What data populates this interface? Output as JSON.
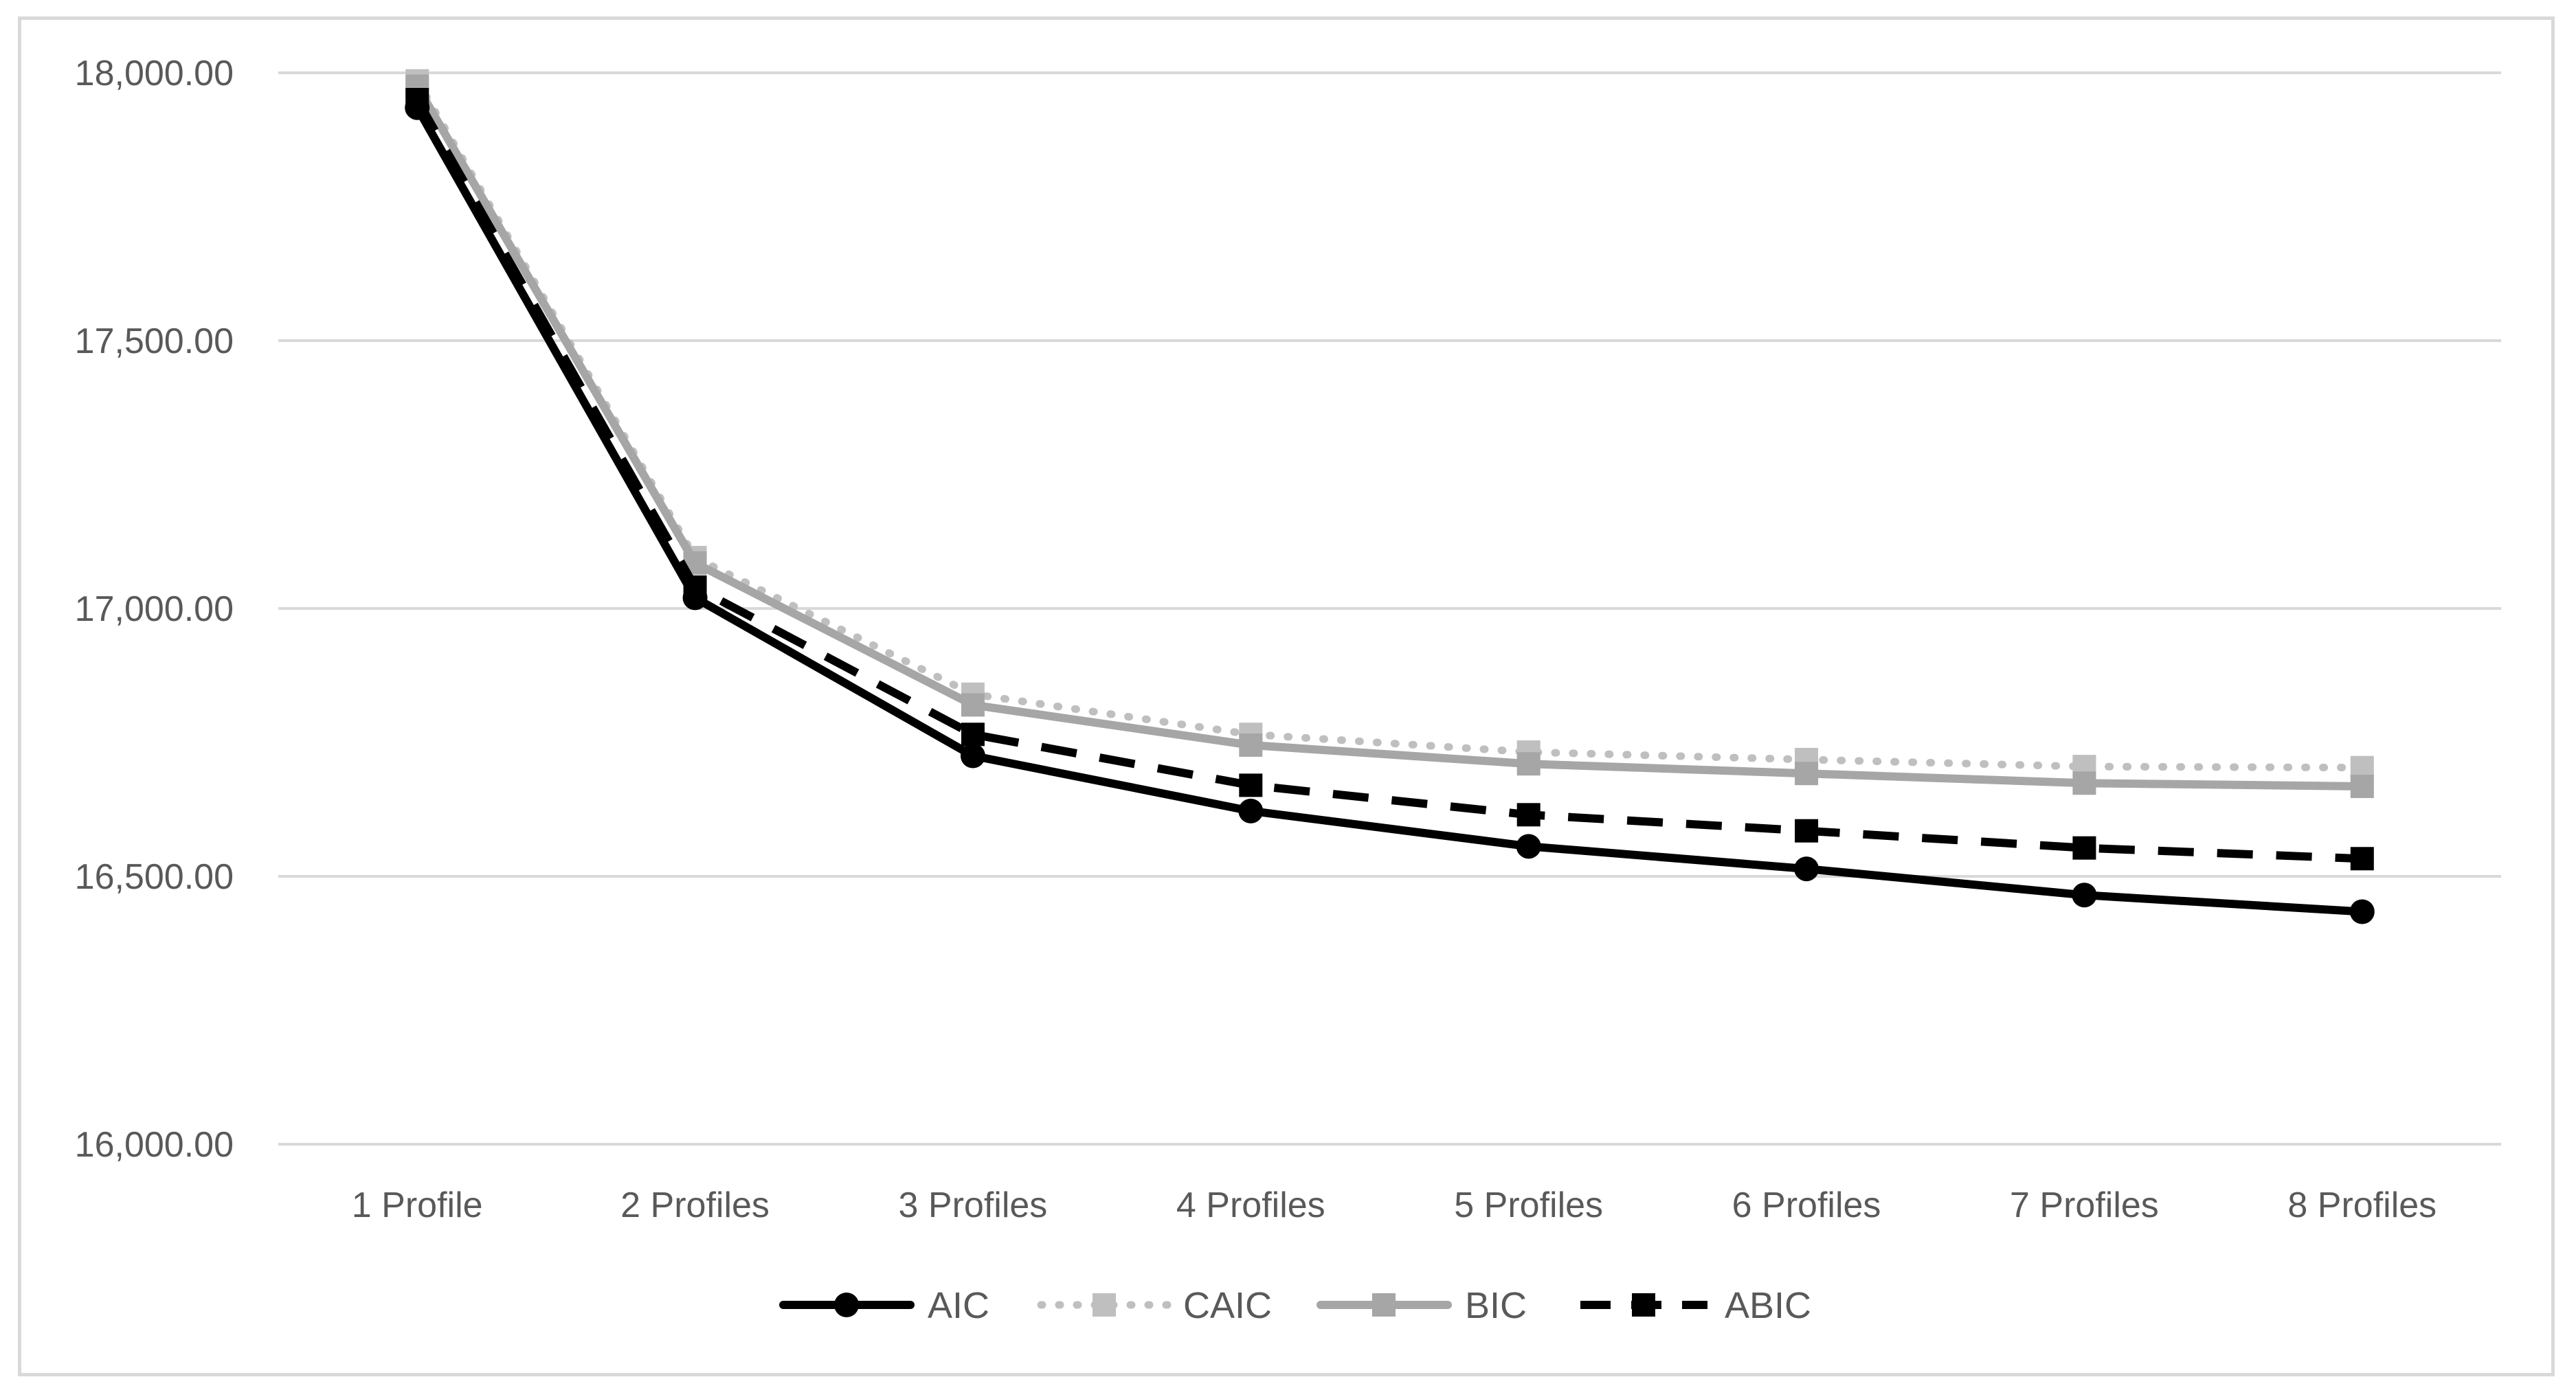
{
  "chart_data": {
    "type": "line",
    "categories": [
      "1 Profile",
      "2 Profiles",
      "3 Profiles",
      "4 Profiles",
      "5 Profiles",
      "6 Profiles",
      "7 Profiles",
      "8 Profiles"
    ],
    "ylim": [
      16000,
      18000
    ],
    "yticks": [
      16000,
      16500,
      17000,
      17500,
      18000
    ],
    "ytick_labels": [
      "16,000.00",
      "16,500.00",
      "17,000.00",
      "17,500.00",
      "18,000.00"
    ],
    "grid": "horizontal",
    "legend_position": "bottom",
    "series": [
      {
        "name": "AIC",
        "color": "#000000",
        "line": "solid",
        "marker": "circle",
        "values": [
          17935,
          17020,
          16725,
          16622,
          16556,
          16514,
          16465,
          16434
        ]
      },
      {
        "name": "CAIC",
        "color": "#bfbfbf",
        "line": "dotted",
        "marker": "square",
        "values": [
          17985,
          17095,
          16840,
          16765,
          16732,
          16718,
          16705,
          16703
        ]
      },
      {
        "name": "BIC",
        "color": "#a6a6a6",
        "line": "solid",
        "marker": "square",
        "values": [
          17975,
          17085,
          16820,
          16745,
          16710,
          16692,
          16674,
          16668
        ]
      },
      {
        "name": "ABIC",
        "color": "#000000",
        "line": "dashed",
        "marker": "square",
        "values": [
          17950,
          17040,
          16765,
          16670,
          16615,
          16585,
          16553,
          16533
        ]
      }
    ],
    "title": "",
    "xlabel": "",
    "ylabel": ""
  }
}
